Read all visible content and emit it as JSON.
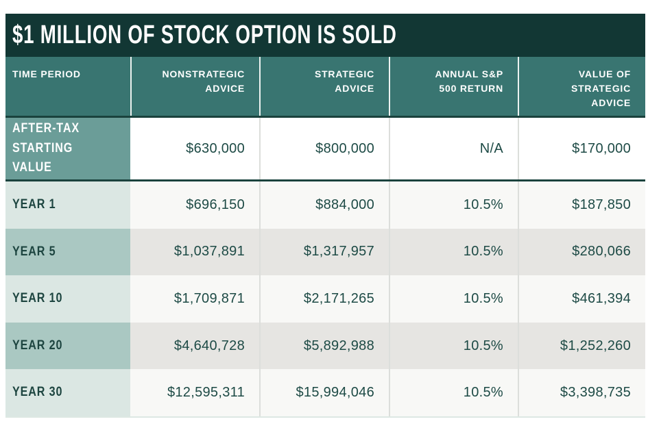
{
  "chart_data": {
    "type": "table",
    "title": "$1 MILLION OF STOCK OPTION IS SOLD",
    "columns": [
      "TIME PERIOD",
      "NONSTRATEGIC\nADVICE",
      "STRATEGIC\nADVICE",
      "ANNUAL S&P\n500 RETURN",
      "VALUE OF\nSTRATEGIC\nADVICE"
    ],
    "rows": [
      {
        "label": "AFTER-TAX\nSTARTING VALUE",
        "values": [
          "$630,000",
          "$800,000",
          "N/A",
          "$170,000"
        ]
      },
      {
        "label": "YEAR 1",
        "values": [
          "$696,150",
          "$884,000",
          "10.5%",
          "$187,850"
        ]
      },
      {
        "label": "YEAR 5",
        "values": [
          "$1,037,891",
          "$1,317,957",
          "10.5%",
          "$280,066"
        ]
      },
      {
        "label": "YEAR 10",
        "values": [
          "$1,709,871",
          "$2,171,265",
          "10.5%",
          "$461,394"
        ]
      },
      {
        "label": "YEAR 20",
        "values": [
          "$4,640,728",
          "$5,892,988",
          "10.5%",
          "$1,252,260"
        ]
      },
      {
        "label": "YEAR 30",
        "values": [
          "$12,595,311",
          "$15,994,046",
          "10.5%",
          "$3,398,735"
        ]
      }
    ],
    "layout": {
      "header_align": "right-except-first",
      "value_align": "right",
      "row_striping": "alternating"
    }
  },
  "colors": {
    "title_bar_bg": "#123734",
    "header_bg": "#397571",
    "highlight_label_bg": "#6b9d98",
    "highlight_data_bg": "#ffffff",
    "label_light_bg": "#dbe7e3",
    "label_dark_bg": "#aac8c2",
    "data_light_bg": "#f8f8f6",
    "data_dark_bg": "#e6e5e2",
    "dark_text": "#1d4a45",
    "separator": "#1a423d"
  }
}
